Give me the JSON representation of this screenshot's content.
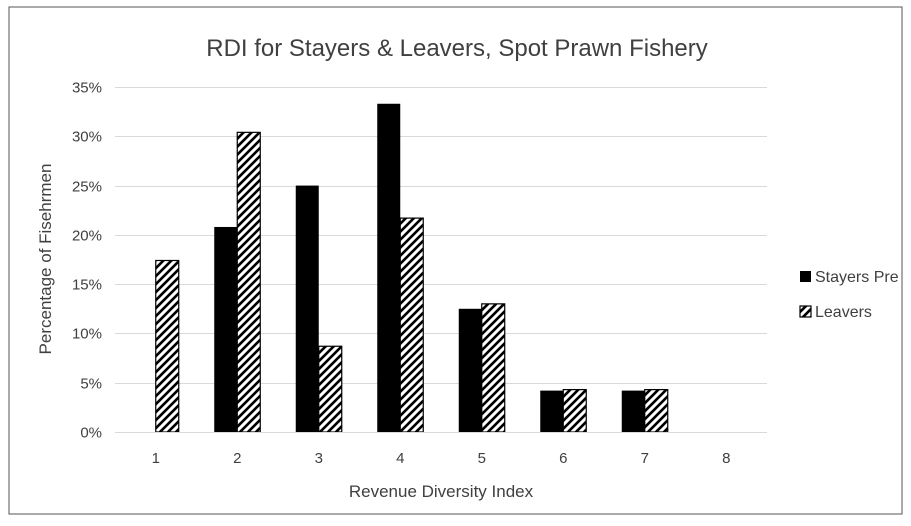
{
  "chart_data": {
    "type": "bar",
    "title": "RDI for Stayers & Leavers, Spot Prawn Fishery",
    "xlabel": "Revenue Diversity Index",
    "ylabel": "Percentage of Fisehrmen",
    "categories": [
      "1",
      "2",
      "3",
      "4",
      "5",
      "6",
      "7",
      "8"
    ],
    "ylim": [
      0,
      35
    ],
    "yticks": [
      "0%",
      "5%",
      "10%",
      "15%",
      "20%",
      "25%",
      "30%",
      "35%"
    ],
    "grid": true,
    "legend_position": "right",
    "series": [
      {
        "name": "Stayers Pre",
        "values": [
          0,
          20.8,
          25.0,
          33.3,
          12.5,
          4.2,
          4.2,
          0
        ],
        "fill": "solid",
        "color": "#000000"
      },
      {
        "name": "Leavers",
        "values": [
          17.4,
          30.4,
          8.7,
          21.7,
          13.0,
          4.3,
          4.3,
          0
        ],
        "fill": "diagonal-hatch",
        "color": "#000000"
      }
    ]
  }
}
